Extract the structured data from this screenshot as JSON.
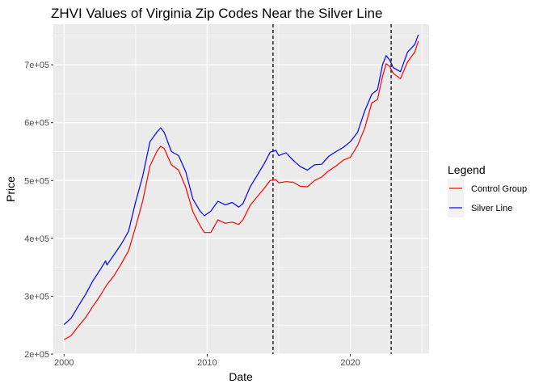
{
  "chart_data": {
    "type": "line",
    "title": "ZHVI Values of Virginia Zip Codes Near the Silver Line",
    "xlabel": "Date",
    "ylabel": "Price",
    "x_ticks": [
      "2000",
      "2010",
      "2020"
    ],
    "y_ticks": [
      "2e+05",
      "3e+05",
      "4e+05",
      "5e+05",
      "6e+05",
      "7e+05"
    ],
    "xlim": [
      1999.25,
      2025.5
    ],
    "ylim": [
      200000,
      770000
    ],
    "grid": true,
    "legend": {
      "title": "Legend",
      "placement": "right"
    },
    "reference_lines_x": [
      2014.6,
      2022.85
    ],
    "series": [
      {
        "name": "Control Group",
        "color": "#ff0000",
        "points": [
          [
            2000.0,
            225000
          ],
          [
            2000.5,
            232000
          ],
          [
            2001.0,
            248000
          ],
          [
            2001.5,
            263000
          ],
          [
            2002.0,
            282000
          ],
          [
            2002.5,
            300000
          ],
          [
            2003.0,
            320000
          ],
          [
            2003.5,
            336000
          ],
          [
            2004.0,
            356000
          ],
          [
            2004.5,
            378000
          ],
          [
            2005.0,
            420000
          ],
          [
            2005.5,
            465000
          ],
          [
            2006.0,
            525000
          ],
          [
            2006.5,
            551000
          ],
          [
            2006.75,
            559000
          ],
          [
            2007.0,
            555000
          ],
          [
            2007.5,
            527000
          ],
          [
            2008.0,
            518000
          ],
          [
            2008.5,
            488000
          ],
          [
            2009.0,
            446000
          ],
          [
            2009.5,
            422000
          ],
          [
            2009.8,
            410000
          ],
          [
            2010.25,
            410000
          ],
          [
            2010.75,
            432000
          ],
          [
            2011.25,
            426000
          ],
          [
            2011.75,
            428000
          ],
          [
            2012.2,
            424000
          ],
          [
            2012.5,
            432000
          ],
          [
            2013.0,
            457000
          ],
          [
            2013.5,
            472000
          ],
          [
            2014.0,
            487000
          ],
          [
            2014.4,
            500000
          ],
          [
            2014.8,
            501000
          ],
          [
            2015.0,
            496000
          ],
          [
            2015.5,
            498000
          ],
          [
            2016.0,
            497000
          ],
          [
            2016.5,
            490000
          ],
          [
            2017.0,
            489000
          ],
          [
            2017.5,
            500000
          ],
          [
            2018.0,
            506000
          ],
          [
            2018.5,
            517000
          ],
          [
            2019.0,
            525000
          ],
          [
            2019.5,
            535000
          ],
          [
            2020.0,
            540000
          ],
          [
            2020.5,
            560000
          ],
          [
            2021.0,
            590000
          ],
          [
            2021.5,
            634000
          ],
          [
            2021.9,
            640000
          ],
          [
            2022.25,
            680000
          ],
          [
            2022.5,
            702000
          ],
          [
            2022.75,
            697000
          ],
          [
            2023.0,
            685000
          ],
          [
            2023.5,
            676000
          ],
          [
            2024.0,
            705000
          ],
          [
            2024.5,
            722000
          ],
          [
            2024.75,
            741000
          ]
        ]
      },
      {
        "name": "Silver Line",
        "color": "#0000ff",
        "points": [
          [
            2000.0,
            251000
          ],
          [
            2000.5,
            262000
          ],
          [
            2001.0,
            283000
          ],
          [
            2001.5,
            303000
          ],
          [
            2002.0,
            326000
          ],
          [
            2002.5,
            345000
          ],
          [
            2002.9,
            361000
          ],
          [
            2003.0,
            354000
          ],
          [
            2003.5,
            372000
          ],
          [
            2004.0,
            390000
          ],
          [
            2004.5,
            412000
          ],
          [
            2005.0,
            463000
          ],
          [
            2005.5,
            508000
          ],
          [
            2006.0,
            567000
          ],
          [
            2006.5,
            584000
          ],
          [
            2006.75,
            591000
          ],
          [
            2007.0,
            583000
          ],
          [
            2007.5,
            550000
          ],
          [
            2008.0,
            543000
          ],
          [
            2008.5,
            515000
          ],
          [
            2009.0,
            468000
          ],
          [
            2009.5,
            447000
          ],
          [
            2009.8,
            439000
          ],
          [
            2010.25,
            447000
          ],
          [
            2010.75,
            464000
          ],
          [
            2011.25,
            458000
          ],
          [
            2011.75,
            462000
          ],
          [
            2012.2,
            454000
          ],
          [
            2012.5,
            460000
          ],
          [
            2013.0,
            489000
          ],
          [
            2013.5,
            509000
          ],
          [
            2014.0,
            530000
          ],
          [
            2014.4,
            549000
          ],
          [
            2014.8,
            552000
          ],
          [
            2015.0,
            543000
          ],
          [
            2015.5,
            548000
          ],
          [
            2016.0,
            535000
          ],
          [
            2016.5,
            524000
          ],
          [
            2017.0,
            518000
          ],
          [
            2017.5,
            527000
          ],
          [
            2018.0,
            528000
          ],
          [
            2018.5,
            542000
          ],
          [
            2019.0,
            550000
          ],
          [
            2019.5,
            557000
          ],
          [
            2020.0,
            567000
          ],
          [
            2020.5,
            583000
          ],
          [
            2021.0,
            620000
          ],
          [
            2021.5,
            649000
          ],
          [
            2021.9,
            657000
          ],
          [
            2022.25,
            700000
          ],
          [
            2022.5,
            716000
          ],
          [
            2022.75,
            708000
          ],
          [
            2023.0,
            695000
          ],
          [
            2023.5,
            688000
          ],
          [
            2024.0,
            722000
          ],
          [
            2024.5,
            735000
          ],
          [
            2024.75,
            752000
          ]
        ]
      }
    ]
  }
}
